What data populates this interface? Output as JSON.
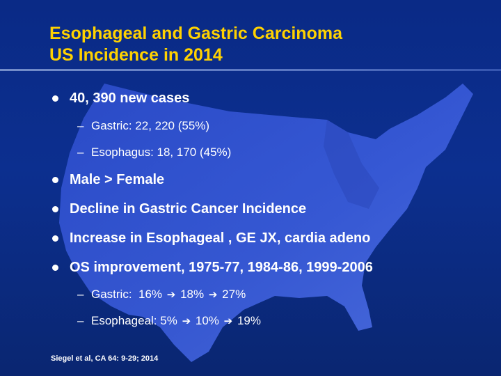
{
  "slide": {
    "title_lines": [
      "Esophageal and Gastric Carcinoma",
      "US Incidence in 2014"
    ],
    "bullets": [
      {
        "text": "40, 390 new cases",
        "subs": [
          "Gastric:  22, 220 (55%)",
          "Esophagus:  18, 170 (45%)"
        ]
      },
      {
        "text": "Male > Female"
      },
      {
        "text": "Decline in Gastric Cancer Incidence"
      },
      {
        "text": "Increase in Esophageal , GE JX, cardia adeno"
      },
      {
        "text": "OS improvement, 1975-77, 1984-86, 1999-2006"
      }
    ],
    "os_subs": [
      {
        "label": "Gastric:",
        "values": [
          "16%",
          "18%",
          "27%"
        ]
      },
      {
        "label": "Esophageal:",
        "values": [
          "5%",
          "10%",
          "19%"
        ]
      }
    ],
    "dash_glyph": "–",
    "arrow_glyph": "➔",
    "citation": "Siegel et al, CA 64:  9-29; 2014"
  },
  "colors": {
    "background": "#0b2b8a",
    "title": "#ffd200",
    "text": "#ffffff",
    "map": "#3d5fe0"
  },
  "icons": {
    "bullet": "filled-circle",
    "arrow": "heavy-right-arrow",
    "background_map": "us-map-silhouette"
  }
}
